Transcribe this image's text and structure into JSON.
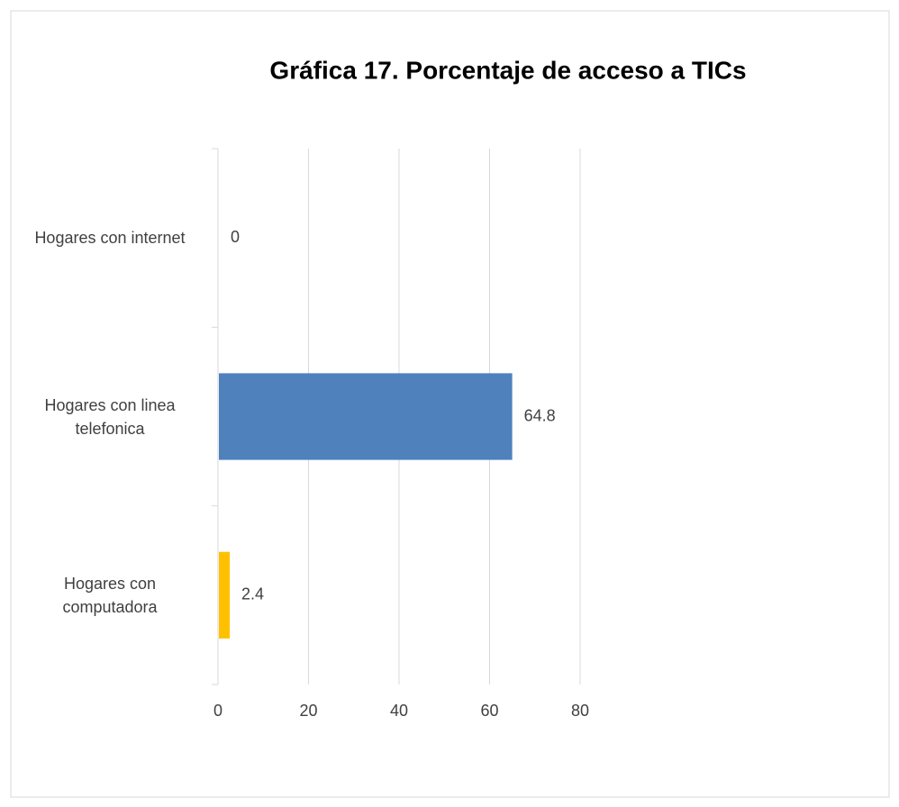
{
  "chart_data": {
    "type": "bar",
    "orientation": "horizontal",
    "title": "Gráfica 17. Porcentaje de acceso a TICs",
    "categories": [
      "Hogares con internet",
      "Hogares con linea telefonica",
      "Hogares con computadora"
    ],
    "values": [
      0,
      64.8,
      2.4
    ],
    "colors": [
      "#a5a5a5",
      "#4f81bd",
      "#ffc000"
    ],
    "xlim": [
      0,
      80
    ],
    "xticks": [
      0,
      20,
      40,
      60,
      80
    ],
    "grid": true
  }
}
